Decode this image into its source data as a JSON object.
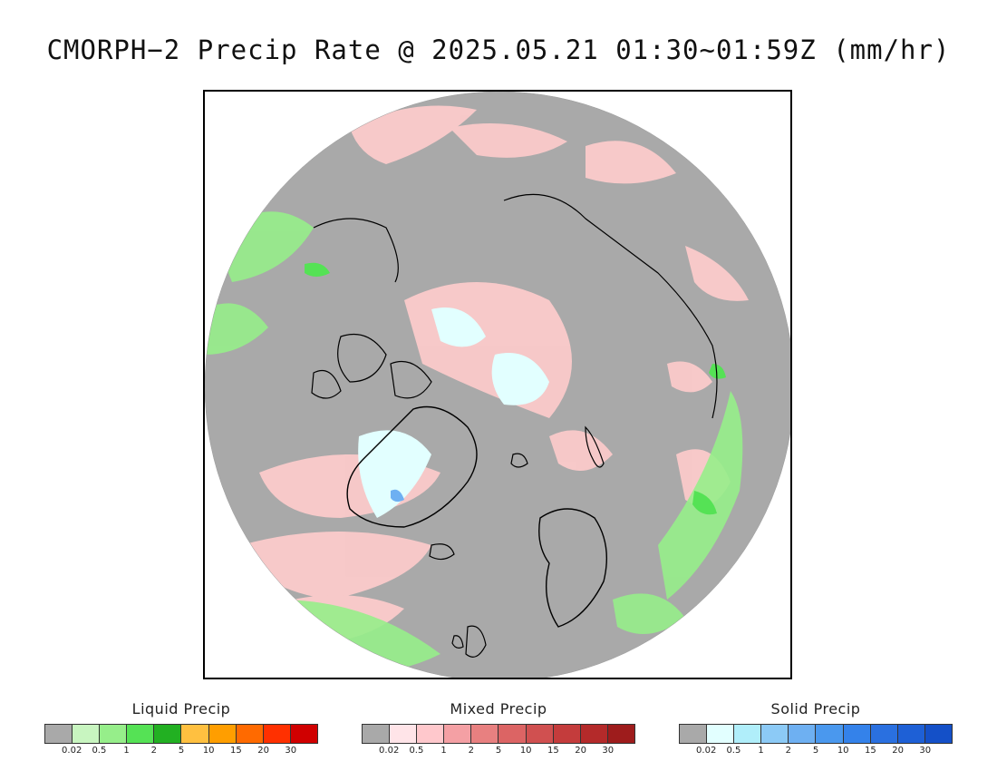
{
  "title": "CMORPH−2 Precip Rate @ 2025.05.21 01:30~01:59Z (mm/hr)",
  "legends": [
    {
      "key": "liquid",
      "title": "Liquid Precip",
      "colors": [
        "#a9a9a9",
        "#c8f5c0",
        "#96ee8a",
        "#55e255",
        "#22b022",
        "#ffc040",
        "#ff9e00",
        "#ff6a00",
        "#ff3000",
        "#d00000"
      ],
      "ticks": [
        "0.02",
        "0.5",
        "1",
        "2",
        "5",
        "10",
        "15",
        "20",
        "30"
      ]
    },
    {
      "key": "mixed",
      "title": "Mixed Precip",
      "colors": [
        "#a9a9a9",
        "#ffe4e8",
        "#ffc8cc",
        "#f4a0a4",
        "#e88080",
        "#dc6464",
        "#d05050",
        "#c43c3c",
        "#b42a2a",
        "#9e1c1c"
      ],
      "ticks": [
        "0.02",
        "0.5",
        "1",
        "2",
        "5",
        "10",
        "15",
        "20",
        "30"
      ]
    },
    {
      "key": "solid",
      "title": "Solid Precip",
      "colors": [
        "#a9a9a9",
        "#e2ffff",
        "#b0eefa",
        "#8ccaf6",
        "#6eb0f2",
        "#4a98ee",
        "#3482ea",
        "#2a70e0",
        "#1e60d6",
        "#1450c8"
      ],
      "ticks": [
        "0.02",
        "0.5",
        "1",
        "2",
        "5",
        "10",
        "15",
        "20",
        "30"
      ]
    }
  ]
}
